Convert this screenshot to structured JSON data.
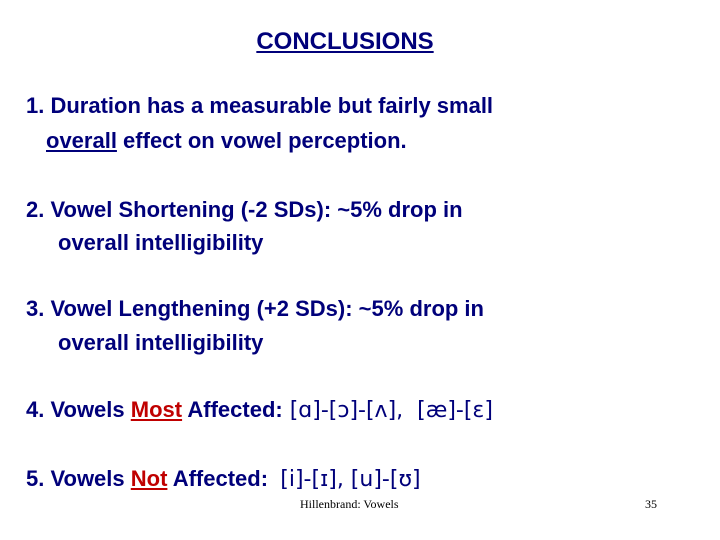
{
  "title": "CONCLUSIONS",
  "items": [
    {
      "lines": [
        [
          "1. Duration has a measurable but fairly small"
        ],
        [
          "overall",
          " effect on vowel perception."
        ]
      ]
    },
    {
      "lines": [
        [
          "2. Vowel Shortening (-2 SDs): ~5% drop in"
        ],
        [
          "overall intelligibility"
        ]
      ]
    },
    {
      "lines": [
        [
          "3. Vowel Lengthening (+2 SDs): ~5% drop in"
        ],
        [
          "overall intelligibility"
        ]
      ]
    },
    {
      "lines": [
        [
          "4. Vowels ",
          "Most",
          " Affected:",
          " [ɑ]-[ɔ]-[ʌ],  [æ]-[ɛ]"
        ]
      ]
    },
    {
      "lines": [
        [
          "5. Vowels ",
          "Not",
          " Affected:  ",
          "[i]-[ɪ], [u]-[ʊ]"
        ]
      ]
    }
  ],
  "footer": {
    "source": "Hillenbrand: Vowels",
    "page": "35"
  }
}
